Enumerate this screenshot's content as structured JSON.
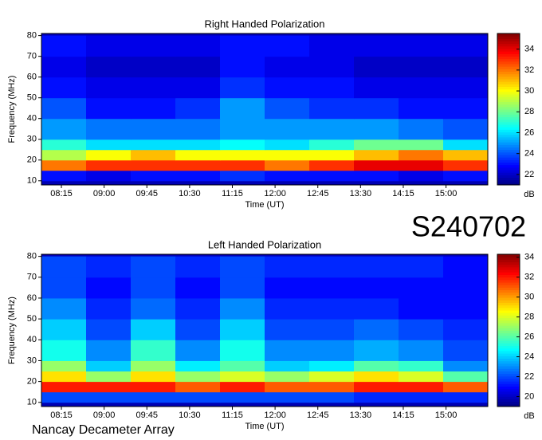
{
  "chart_data": [
    {
      "type": "heatmap",
      "title": "Right Handed Polarization",
      "x_label": "Time (UT)",
      "y_label": "Frequency (MHz)",
      "colorbar_label": "dB",
      "colormap": "jet",
      "xlim": [
        474,
        944
      ],
      "ylim": [
        8,
        81
      ],
      "xticks": [
        {
          "value": 495,
          "label": "08:15"
        },
        {
          "value": 540,
          "label": "09:00"
        },
        {
          "value": 585,
          "label": "09:45"
        },
        {
          "value": 630,
          "label": "10:30"
        },
        {
          "value": 675,
          "label": "11:15"
        },
        {
          "value": 720,
          "label": "12:00"
        },
        {
          "value": 765,
          "label": "12:45"
        },
        {
          "value": 810,
          "label": "13:30"
        },
        {
          "value": 855,
          "label": "14:15"
        },
        {
          "value": 900,
          "label": "15:00"
        }
      ],
      "yticks": [
        10,
        20,
        30,
        40,
        50,
        60,
        70,
        80
      ],
      "clim": [
        21,
        35.5
      ],
      "cticks": [
        22,
        24,
        26,
        28,
        30,
        32,
        34
      ],
      "x_edges": [
        474,
        521,
        568,
        615,
        662,
        709,
        756,
        803,
        850,
        897,
        944
      ],
      "y_edges": [
        10,
        15,
        20,
        25,
        30,
        40,
        50,
        60,
        70,
        80
      ],
      "values": [
        [
          23,
          22.5,
          23,
          23,
          23.5,
          23,
          23,
          23,
          22.5,
          23
        ],
        [
          32,
          33,
          33,
          33,
          33,
          32,
          33,
          34,
          34,
          33
        ],
        [
          29,
          30,
          31,
          30,
          30,
          30,
          30,
          31,
          32,
          31
        ],
        [
          27,
          26,
          26,
          26,
          26.5,
          26,
          27,
          28,
          28,
          26
        ],
        [
          25,
          24.5,
          24.5,
          24.5,
          25,
          25,
          25,
          25,
          24.5,
          24
        ],
        [
          24,
          23,
          23,
          23.5,
          25,
          24,
          23.5,
          23.5,
          23,
          23
        ],
        [
          23,
          22.5,
          22.5,
          22.5,
          23.5,
          23,
          23,
          22.5,
          22.5,
          22.5
        ],
        [
          22.5,
          22,
          22,
          22,
          23,
          22.5,
          22.5,
          22,
          22,
          22
        ],
        [
          23,
          22.5,
          22.5,
          22.5,
          23,
          23,
          22.5,
          22.5,
          22.5,
          22.5
        ]
      ]
    },
    {
      "type": "heatmap",
      "title": "Left Handed Polarization",
      "x_label": "Time (UT)",
      "y_label": "Frequency (MHz)",
      "colorbar_label": "dB",
      "colormap": "jet",
      "xlim": [
        474,
        944
      ],
      "ylim": [
        8,
        81
      ],
      "xticks": [
        {
          "value": 495,
          "label": "08:15"
        },
        {
          "value": 540,
          "label": "09:00"
        },
        {
          "value": 585,
          "label": "09:45"
        },
        {
          "value": 630,
          "label": "10:30"
        },
        {
          "value": 675,
          "label": "11:15"
        },
        {
          "value": 720,
          "label": "12:00"
        },
        {
          "value": 765,
          "label": "12:45"
        },
        {
          "value": 810,
          "label": "13:30"
        },
        {
          "value": 855,
          "label": "14:15"
        },
        {
          "value": 900,
          "label": "15:00"
        }
      ],
      "yticks": [
        10,
        20,
        30,
        40,
        50,
        60,
        70,
        80
      ],
      "clim": [
        19,
        34.3
      ],
      "cticks": [
        20,
        22,
        24,
        26,
        28,
        30,
        32,
        34
      ],
      "x_edges": [
        474,
        521,
        568,
        615,
        662,
        709,
        756,
        803,
        850,
        897,
        944
      ],
      "y_edges": [
        10,
        15,
        20,
        25,
        30,
        40,
        50,
        60,
        70,
        80
      ],
      "values": [
        [
          22,
          22,
          22,
          22,
          22,
          22,
          22,
          21.5,
          21.5,
          21.5
        ],
        [
          32,
          32,
          32,
          31,
          32,
          31,
          31,
          32,
          32,
          31
        ],
        [
          29,
          27,
          29,
          27,
          28,
          27,
          28,
          29,
          28,
          26
        ],
        [
          27,
          24,
          27,
          24.5,
          26,
          24,
          24.5,
          26,
          25.5,
          23
        ],
        [
          25,
          23,
          25.5,
          23,
          25,
          23,
          23,
          23.5,
          23,
          22
        ],
        [
          24,
          22,
          24,
          22,
          24,
          22,
          22,
          22.5,
          22,
          21.5
        ],
        [
          23,
          21.5,
          22.5,
          21.5,
          23,
          21.5,
          21.5,
          21.5,
          21,
          21
        ],
        [
          22,
          21,
          22,
          21,
          22,
          21,
          21,
          21,
          21,
          21
        ],
        [
          22,
          21.5,
          22,
          21.5,
          22,
          21.5,
          21.5,
          21.5,
          21.5,
          21
        ]
      ]
    }
  ],
  "station_label": "S240702",
  "footer": "Nancay Decameter Array"
}
